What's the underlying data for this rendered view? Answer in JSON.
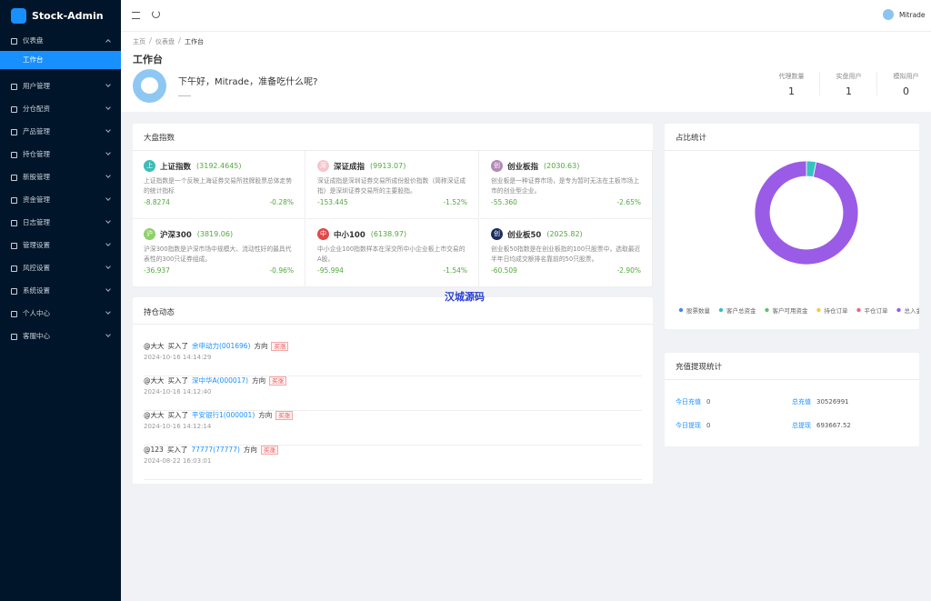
{
  "sidebar": {
    "logo": "Stock-Admin",
    "menu": [
      {
        "label": "仪表盘",
        "children": [
          "工作台"
        ]
      },
      {
        "label": "用户管理"
      },
      {
        "label": "分仓配资"
      },
      {
        "label": "产品管理"
      },
      {
        "label": "持仓管理"
      },
      {
        "label": "新股管理"
      },
      {
        "label": "资金管理"
      },
      {
        "label": "日志管理"
      },
      {
        "label": "管理设置"
      },
      {
        "label": "风控设置"
      },
      {
        "label": "系统设置"
      },
      {
        "label": "个人中心"
      },
      {
        "label": "客服中心"
      }
    ]
  },
  "header": {
    "user": "Mitrade"
  },
  "breadcrumb": [
    "主页",
    "仪表盘",
    "工作台"
  ],
  "page_title": "工作台",
  "greeting": "下午好，Mitrade，准备吃什么呢?",
  "stats": [
    {
      "label": "代理数量",
      "value": "1"
    },
    {
      "label": "实盘用户",
      "value": "1"
    },
    {
      "label": "模拟用户",
      "value": "0"
    }
  ],
  "market": {
    "title": "大盘指数",
    "items": [
      {
        "icon": "上",
        "name": "上证指数",
        "price": "(3192.4645)",
        "desc": "上证指数是一个反映上海证券交易所挂牌股票总体走势的统计指标",
        "change": "-8.8274",
        "pct": "-0.28%"
      },
      {
        "icon": "深",
        "name": "深证成指",
        "price": "(9913.07)",
        "desc": "深证成指是深圳证券交易所成份股价指数（简称深证成指）是深圳证券交易所的主要股指。",
        "change": "-153.445",
        "pct": "-1.52%"
      },
      {
        "icon": "创",
        "name": "创业板指",
        "price": "(2030.63)",
        "desc": "创业板是一种证券市场，是专为暂时无法在主板市场上市的创业型企业。",
        "change": "-55.360",
        "pct": "-2.65%"
      },
      {
        "icon": "沪",
        "name": "沪深300",
        "price": "(3819.06)",
        "desc": "沪深300指数是沪深市场中规模大、流动性好的最具代表性的300只证券组成。",
        "change": "-36.937",
        "pct": "-0.96%"
      },
      {
        "icon": "中",
        "name": "中小100",
        "price": "(6138.97)",
        "desc": "中小企业100指数样本在深交所中小企业板上市交易的A股。",
        "change": "-95.994",
        "pct": "-1.54%"
      },
      {
        "icon": "创",
        "name": "创业板50",
        "price": "(2025.82)",
        "desc": "创业板50指数是在创业板指的100只股票中，选取最近半年日均成交额排名靠前的50只股票。",
        "change": "-60.509",
        "pct": "-2.90%"
      }
    ]
  },
  "positions": {
    "title": "持仓动态",
    "items": [
      {
        "user": "@大大",
        "action": "买入了",
        "stock": "余申动力(001696)",
        "dir": "方向",
        "tag": "买涨",
        "time": "2024-10-16 14:14:29"
      },
      {
        "user": "@大大",
        "action": "买入了",
        "stock": "深中华A(000017)",
        "dir": "方向",
        "tag": "买涨",
        "time": "2024-10-16 14:12:40"
      },
      {
        "user": "@大大",
        "action": "买入了",
        "stock": "平安银行1(000001)",
        "dir": "方向",
        "tag": "买涨",
        "time": "2024-10-16 14:12:14"
      },
      {
        "user": "@123",
        "action": "买入了",
        "stock": "77777(77777)",
        "dir": "方向",
        "tag": "买涨",
        "time": "2024-08-22 16:03:01"
      }
    ]
  },
  "chart_data": {
    "type": "pie",
    "title": "占比统计",
    "categories": [
      "股票数量",
      "客户总资金",
      "客户可用资金",
      "持仓订单",
      "平仓订单",
      "总入金"
    ],
    "values": [
      0,
      3,
      0,
      0,
      0,
      97
    ],
    "colors": [
      "#3a8ee6",
      "#36c2c0",
      "#5fc46a",
      "#f5c842",
      "#ee6680",
      "#9a5ce6"
    ]
  },
  "recharge": {
    "title": "充值提现统计",
    "rows": [
      [
        {
          "label": "今日充值",
          "value": "0"
        },
        {
          "label": "总充值",
          "value": "30526991"
        }
      ],
      [
        {
          "label": "今日提现",
          "value": "0"
        },
        {
          "label": "总提现",
          "value": "693667.52"
        }
      ]
    ]
  },
  "watermark": "汉城源码"
}
